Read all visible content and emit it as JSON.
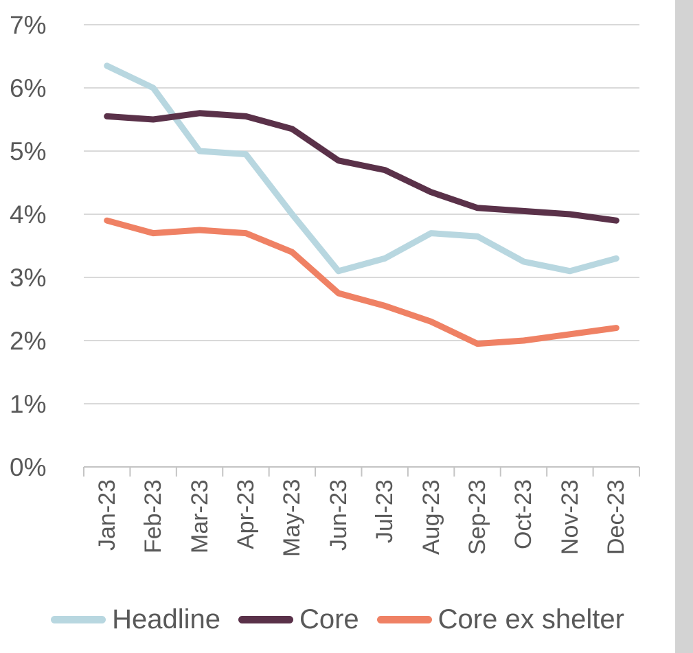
{
  "chart_data": {
    "type": "line",
    "title": "",
    "categories": [
      "Jan-23",
      "Feb-23",
      "Mar-23",
      "Apr-23",
      "May-23",
      "Jun-23",
      "Jul-23",
      "Aug-23",
      "Sep-23",
      "Oct-23",
      "Nov-23",
      "Dec-23"
    ],
    "series": [
      {
        "name": "Headline",
        "color": "#b8d7e0",
        "values": [
          6.35,
          6.0,
          5.0,
          4.95,
          4.0,
          3.1,
          3.3,
          3.7,
          3.65,
          3.25,
          3.1,
          3.3
        ]
      },
      {
        "name": "Core",
        "color": "#5a3149",
        "values": [
          5.55,
          5.5,
          5.6,
          5.55,
          5.35,
          4.85,
          4.7,
          4.35,
          4.1,
          4.05,
          4.0,
          3.9
        ]
      },
      {
        "name": "Core ex shelter",
        "color": "#ef8164",
        "values": [
          3.9,
          3.7,
          3.75,
          3.7,
          3.4,
          2.75,
          2.55,
          2.3,
          1.95,
          2.0,
          2.1,
          2.2
        ]
      }
    ],
    "ylim": [
      0,
      7
    ],
    "y_ticks": [
      "0%",
      "1%",
      "2%",
      "3%",
      "4%",
      "5%",
      "6%",
      "7%"
    ],
    "grid": "horizontal",
    "legend_position": "bottom",
    "x_label_rotation": -90
  },
  "colors": {
    "gridline": "#d9d9d9",
    "axis": "#c4c4c4",
    "text": "#595959",
    "side_strip": "#d3d3d3"
  }
}
